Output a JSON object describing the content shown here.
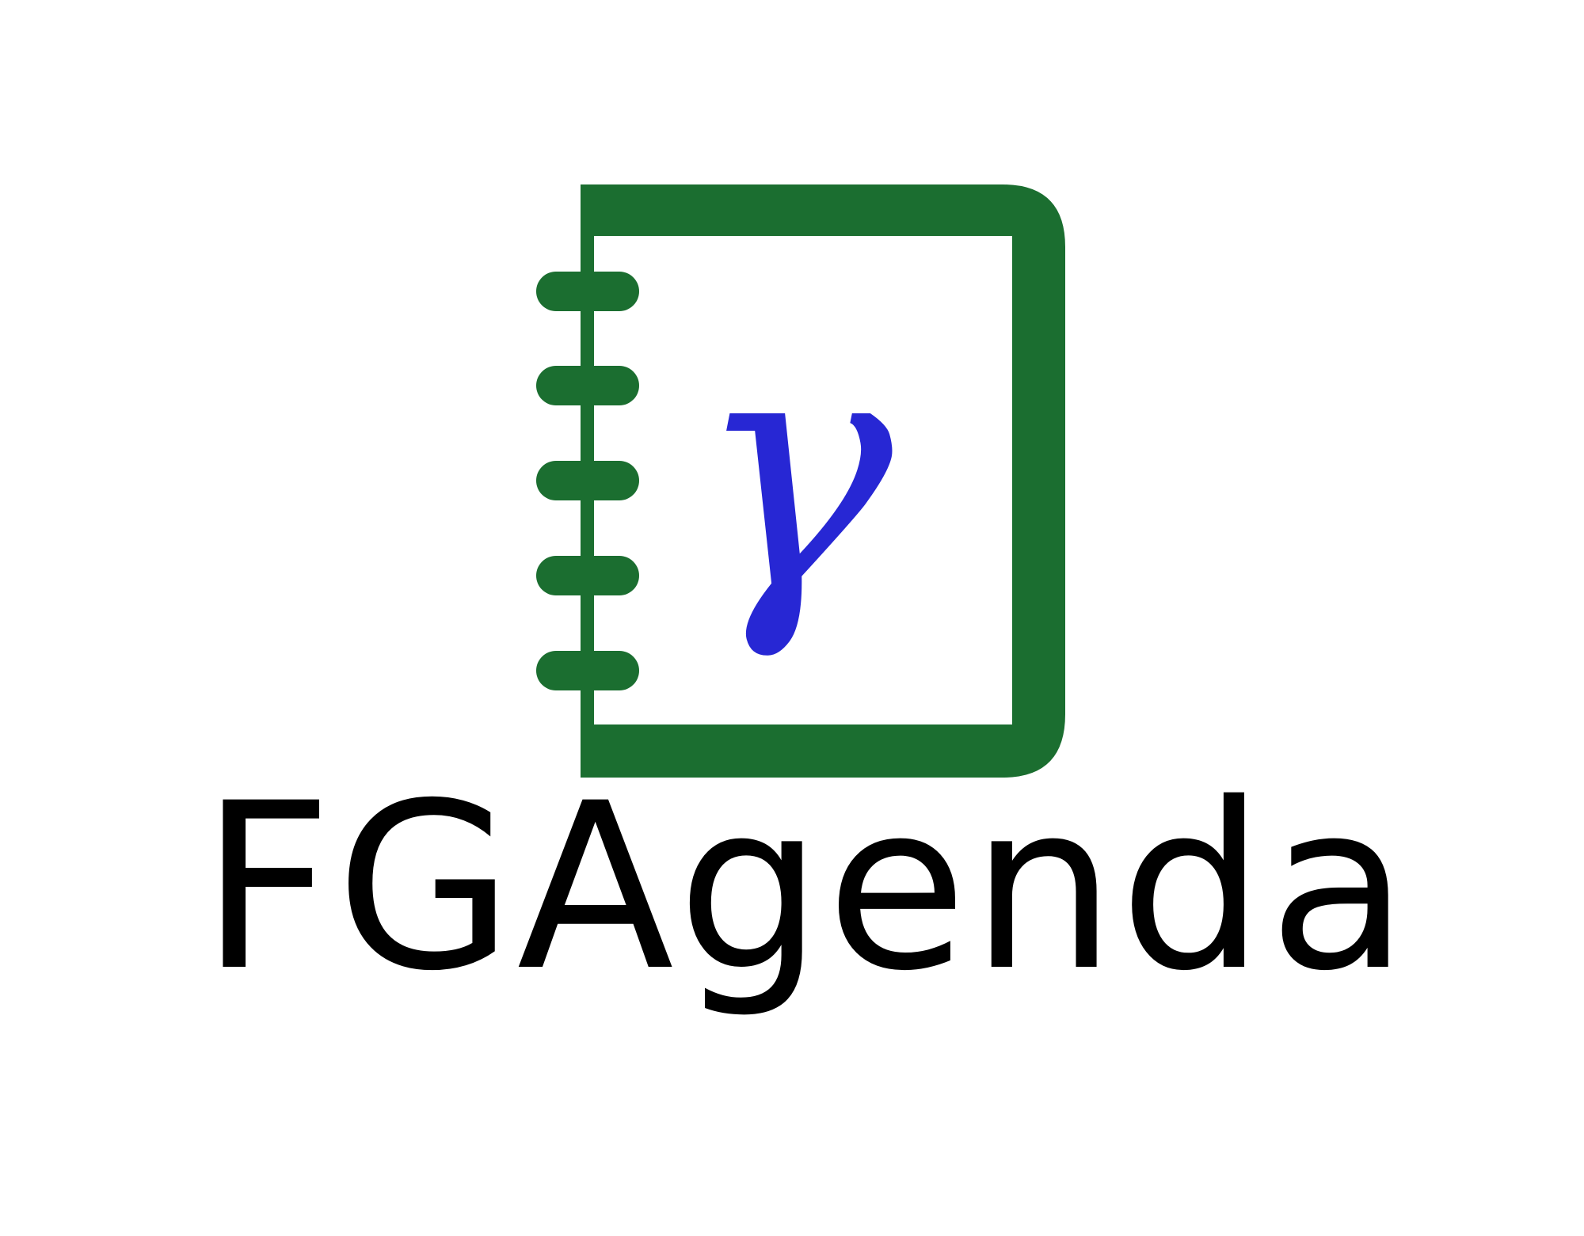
{
  "logo": {
    "symbol": "γ",
    "wordmark": "FGAgenda",
    "colors": {
      "notebook": "#1b6e30",
      "symbol": "#2727d4",
      "wordmark": "#000000",
      "background": "#ffffff"
    },
    "icon": "spiral-notebook-icon"
  }
}
